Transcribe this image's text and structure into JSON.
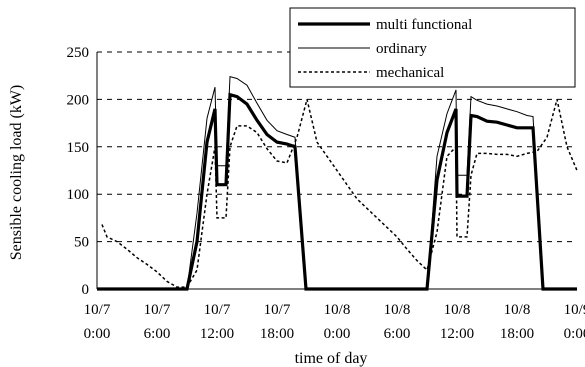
{
  "chart_data": {
    "type": "line",
    "title": "",
    "xlabel": "time of day",
    "ylabel": "Sensible cooling load (kW)",
    "ylim": [
      0,
      250
    ],
    "xlim": [
      "10/7 0:00",
      "10/9 0:00"
    ],
    "x_unit": "hour",
    "yticks": [
      0,
      50,
      100,
      150,
      200,
      250
    ],
    "xticks": [
      {
        "hour": 0,
        "line1": "10/7",
        "line2": "0:00"
      },
      {
        "hour": 6,
        "line1": "10/7",
        "line2": "6:00"
      },
      {
        "hour": 12,
        "line1": "10/7",
        "line2": "12:00"
      },
      {
        "hour": 18,
        "line1": "10/7",
        "line2": "18:00"
      },
      {
        "hour": 24,
        "line1": "10/8",
        "line2": "0:00"
      },
      {
        "hour": 30,
        "line1": "10/8",
        "line2": "6:00"
      },
      {
        "hour": 36,
        "line1": "10/8",
        "line2": "12:00"
      },
      {
        "hour": 42,
        "line1": "10/8",
        "line2": "18:00"
      },
      {
        "hour": 48,
        "line1": "10/9",
        "line2": "0:00"
      }
    ],
    "grid": "horizontal dashed",
    "legend_position": "top-right",
    "series": [
      {
        "name": "multi functional",
        "style": "thick-solid",
        "x": [
          0,
          9,
          10,
          11,
          11.8,
          12,
          12.9,
          13.3,
          14,
          15,
          16,
          17,
          18,
          19,
          19.8,
          20.9,
          21,
          33,
          34,
          35,
          35.9,
          36,
          37,
          37.4,
          38,
          39,
          40,
          41,
          42,
          43,
          43.6,
          44.6,
          48
        ],
        "y": [
          0,
          0,
          50,
          155,
          190,
          110,
          110,
          205,
          203,
          195,
          178,
          163,
          155,
          153,
          150,
          0,
          0,
          0,
          115,
          165,
          190,
          98,
          98,
          183,
          182,
          177,
          176,
          173,
          170,
          170,
          170,
          0,
          0
        ]
      },
      {
        "name": "ordinary",
        "style": "thin-solid",
        "x": [
          0,
          9,
          10,
          11,
          11.8,
          12,
          12.9,
          13.3,
          14,
          15,
          16,
          17,
          18,
          19,
          19.8,
          20.9,
          21,
          33,
          34,
          35,
          35.9,
          36,
          37,
          37.4,
          38,
          39,
          40,
          41,
          42,
          43,
          43.6,
          44.6,
          48
        ],
        "y": [
          0,
          0,
          80,
          180,
          213,
          130,
          130,
          224,
          222,
          215,
          196,
          178,
          167,
          163,
          160,
          0,
          0,
          0,
          140,
          185,
          210,
          120,
          120,
          203,
          199,
          195,
          193,
          190,
          187,
          183,
          182,
          0,
          0
        ]
      },
      {
        "name": "mechanical",
        "style": "dashed",
        "x": [
          0,
          0.5,
          1,
          2,
          3,
          4,
          5,
          6,
          7,
          8,
          9,
          10,
          11,
          11.8,
          12,
          12.9,
          13.3,
          14,
          15,
          16,
          17,
          18,
          19,
          20,
          21,
          22,
          24,
          26,
          28,
          30,
          31,
          32,
          33,
          34,
          35,
          35.9,
          36,
          37,
          37.4,
          38,
          39,
          40,
          41,
          42,
          43,
          44,
          45,
          46,
          47,
          48
        ],
        "y": [
          null,
          68,
          55,
          50,
          42,
          33,
          26,
          18,
          8,
          2,
          2,
          20,
          100,
          150,
          75,
          75,
          150,
          172,
          172,
          165,
          148,
          135,
          133,
          160,
          200,
          155,
          125,
          95,
          75,
          55,
          42,
          30,
          20,
          60,
          140,
          150,
          55,
          55,
          120,
          143,
          143,
          142,
          142,
          140,
          143,
          145,
          160,
          200,
          150,
          125
        ]
      }
    ]
  }
}
